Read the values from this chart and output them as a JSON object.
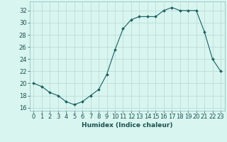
{
  "x": [
    0,
    1,
    2,
    3,
    4,
    5,
    6,
    7,
    8,
    9,
    10,
    11,
    12,
    13,
    14,
    15,
    16,
    17,
    18,
    19,
    20,
    21,
    22,
    23
  ],
  "y": [
    20,
    19.5,
    18.5,
    18,
    17,
    16.5,
    17,
    18,
    19,
    21.5,
    25.5,
    29,
    30.5,
    31,
    31,
    31,
    32,
    32.5,
    32,
    32,
    32,
    28.5,
    24,
    22
  ],
  "line_color": "#1a6060",
  "marker_color": "#1a6060",
  "bg_color": "#d8f5f0",
  "grid_color": "#b8d8d4",
  "xlabel": "Humidex (Indice chaleur)",
  "xlim": [
    -0.5,
    23.5
  ],
  "ylim": [
    15.5,
    33.5
  ],
  "yticks": [
    16,
    18,
    20,
    22,
    24,
    26,
    28,
    30,
    32
  ],
  "xticks": [
    0,
    1,
    2,
    3,
    4,
    5,
    6,
    7,
    8,
    9,
    10,
    11,
    12,
    13,
    14,
    15,
    16,
    17,
    18,
    19,
    20,
    21,
    22,
    23
  ],
  "tick_color": "#1a5050",
  "label_fontsize": 6.0,
  "xlabel_fontsize": 6.5,
  "spine_color": "#8ababa"
}
